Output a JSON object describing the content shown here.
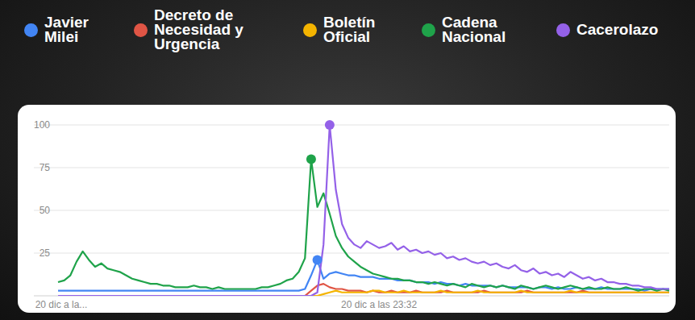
{
  "chart_data": {
    "type": "line",
    "categories": [
      "20 dic a la...",
      null,
      null,
      null,
      null,
      null,
      null,
      null,
      null,
      null,
      null,
      null,
      null,
      null,
      null,
      null,
      null,
      null,
      null,
      null,
      null,
      null,
      null,
      null,
      null,
      null,
      null,
      null,
      null,
      null,
      null,
      null,
      null,
      null,
      null,
      null,
      null,
      null,
      null,
      null,
      null,
      null,
      null,
      null,
      null,
      null,
      null,
      null,
      null,
      null,
      null,
      null,
      "20 dic a las 23:32",
      null,
      null,
      null,
      null,
      null,
      null,
      null,
      null,
      null,
      null,
      null,
      null,
      null,
      null,
      null,
      null,
      null,
      null,
      null,
      null,
      null,
      null,
      null,
      null,
      null,
      null,
      null,
      null,
      null,
      null,
      null,
      null,
      null,
      null,
      null,
      null,
      null,
      null,
      null,
      null,
      null,
      null,
      null,
      null,
      null,
      null,
      null
    ],
    "ylim": [
      0,
      100
    ],
    "yticks": [
      25,
      50,
      75,
      100
    ],
    "grid": true,
    "legend": "top",
    "series": [
      {
        "name": "Javier Milei",
        "color": "#4285f4",
        "marker": "peak",
        "values": [
          3,
          3,
          3,
          3,
          3,
          3,
          3,
          3,
          3,
          3,
          3,
          3,
          3,
          3,
          3,
          3,
          3,
          3,
          3,
          3,
          3,
          3,
          3,
          3,
          3,
          3,
          3,
          3,
          3,
          3,
          3,
          3,
          3,
          3,
          3,
          3,
          3,
          3,
          3,
          3,
          4,
          12,
          21,
          10,
          13,
          14,
          13,
          12,
          12,
          11,
          11,
          11,
          10,
          10,
          10,
          9,
          9,
          9,
          8,
          8,
          8,
          7,
          8,
          7,
          7,
          6,
          7,
          6,
          6,
          6,
          6,
          5,
          6,
          5,
          5,
          5,
          5,
          4,
          5,
          5,
          4,
          5,
          4,
          4,
          5,
          4,
          4,
          4,
          5,
          4,
          4,
          4,
          4,
          4,
          4,
          3,
          4,
          4,
          4,
          4
        ]
      },
      {
        "name": "Decreto de Necesidad y Urgencia",
        "color": "#e05545",
        "marker": "none",
        "values": [
          0,
          0,
          0,
          0,
          0,
          0,
          0,
          0,
          0,
          0,
          0,
          0,
          0,
          0,
          0,
          0,
          0,
          0,
          0,
          0,
          0,
          0,
          0,
          0,
          0,
          0,
          0,
          0,
          0,
          0,
          0,
          0,
          0,
          0,
          0,
          0,
          0,
          0,
          0,
          0,
          0,
          3,
          6,
          7,
          5,
          4,
          4,
          3,
          3,
          3,
          2,
          3,
          2,
          2,
          3,
          2,
          2,
          2,
          3,
          2,
          2,
          2,
          2,
          3,
          2,
          2,
          2,
          2,
          2,
          3,
          2,
          2,
          2,
          2,
          2,
          2,
          3,
          2,
          2,
          2,
          2,
          2,
          2,
          2,
          2,
          3,
          2,
          2,
          2,
          2,
          2,
          2,
          2,
          2,
          2,
          2,
          2,
          2,
          2,
          2
        ]
      },
      {
        "name": "Boletín Oficial",
        "color": "#f4b400",
        "marker": "none",
        "values": [
          0,
          0,
          0,
          0,
          0,
          0,
          0,
          0,
          0,
          0,
          0,
          0,
          0,
          0,
          0,
          0,
          0,
          0,
          0,
          0,
          0,
          0,
          0,
          0,
          0,
          0,
          0,
          0,
          0,
          0,
          0,
          0,
          0,
          0,
          0,
          0,
          0,
          0,
          0,
          0,
          0,
          0,
          0,
          1,
          2,
          3,
          2,
          2,
          2,
          2,
          2,
          3,
          3,
          2,
          2,
          2,
          3,
          2,
          2,
          2,
          2,
          2,
          3,
          2,
          2,
          2,
          2,
          2,
          3,
          2,
          2,
          2,
          2,
          2,
          2,
          3,
          2,
          2,
          2,
          2,
          2,
          2,
          2,
          3,
          2,
          2,
          2,
          2,
          2,
          2,
          2,
          2,
          2,
          2,
          2,
          2,
          2,
          2,
          2,
          2
        ]
      },
      {
        "name": "Cadena Nacional",
        "color": "#1fa34a",
        "marker": "peak",
        "values": [
          8,
          9,
          12,
          20,
          26,
          21,
          17,
          19,
          16,
          15,
          14,
          12,
          10,
          9,
          8,
          7,
          7,
          6,
          6,
          5,
          5,
          5,
          6,
          5,
          5,
          4,
          5,
          4,
          4,
          4,
          4,
          4,
          4,
          5,
          5,
          6,
          7,
          9,
          10,
          14,
          22,
          80,
          52,
          60,
          48,
          35,
          28,
          23,
          20,
          17,
          15,
          13,
          12,
          11,
          10,
          10,
          9,
          9,
          8,
          8,
          7,
          8,
          7,
          6,
          7,
          6,
          5,
          7,
          6,
          5,
          6,
          5,
          6,
          5,
          4,
          6,
          5,
          4,
          5,
          6,
          5,
          4,
          5,
          6,
          5,
          4,
          5,
          4,
          4,
          5,
          4,
          4,
          5,
          4,
          3,
          4,
          4,
          3,
          4,
          3
        ]
      },
      {
        "name": "Cacerolazo",
        "color": "#9461e8",
        "marker": "peak",
        "values": [
          0,
          0,
          0,
          0,
          0,
          0,
          0,
          0,
          0,
          0,
          0,
          0,
          0,
          0,
          0,
          0,
          0,
          0,
          0,
          0,
          0,
          0,
          0,
          0,
          0,
          0,
          0,
          0,
          0,
          0,
          0,
          0,
          0,
          0,
          0,
          0,
          0,
          0,
          0,
          0,
          0,
          0,
          2,
          30,
          100,
          62,
          42,
          34,
          30,
          28,
          32,
          30,
          28,
          29,
          31,
          27,
          29,
          26,
          27,
          25,
          26,
          24,
          25,
          22,
          23,
          21,
          22,
          20,
          19,
          20,
          18,
          19,
          17,
          16,
          18,
          15,
          14,
          16,
          13,
          14,
          12,
          13,
          11,
          14,
          12,
          10,
          11,
          9,
          10,
          8,
          8,
          7,
          7,
          6,
          6,
          5,
          5,
          4,
          4,
          4
        ]
      }
    ]
  }
}
